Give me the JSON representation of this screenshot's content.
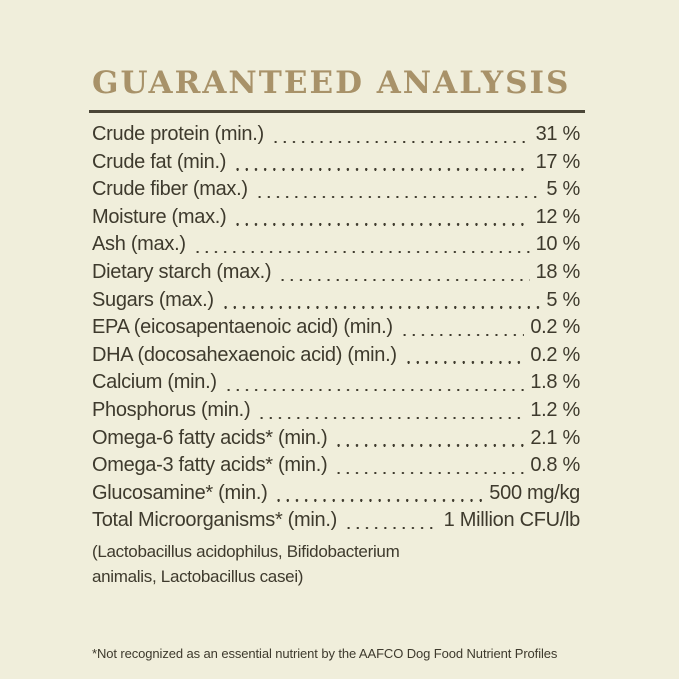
{
  "title": "GUARANTEED ANALYSIS",
  "nutrients": [
    {
      "label": "Crude protein (min.)",
      "value": "31 %"
    },
    {
      "label": "Crude fat (min.)",
      "value": "17 %"
    },
    {
      "label": "Crude fiber (max.)",
      "value": "5 %"
    },
    {
      "label": "Moisture (max.)",
      "value": "12 %"
    },
    {
      "label": "Ash (max.)",
      "value": "10 %"
    },
    {
      "label": "Dietary starch (max.)",
      "value": "18 %"
    },
    {
      "label": "Sugars (max.)",
      "value": "5 %"
    },
    {
      "label": "EPA (eicosapentaenoic acid) (min.)",
      "value": "0.2 %"
    },
    {
      "label": "DHA (docosahexaenoic acid) (min.)",
      "value": "0.2 %"
    },
    {
      "label": "Calcium (min.)",
      "value": "1.8 %"
    },
    {
      "label": "Phosphorus (min.)",
      "value": "1.2 %"
    },
    {
      "label": "Omega-6 fatty acids* (min.)",
      "value": "2.1 %"
    },
    {
      "label": "Omega-3 fatty acids* (min.)",
      "value": "0.8 %"
    },
    {
      "label": "Glucosamine* (min.)",
      "value": "500 mg/kg"
    },
    {
      "label": "Total Microorganisms* (min.)",
      "value": "1 Million CFU/lb"
    }
  ],
  "microorganism_note": "(Lactobacillus acidophilus, Bifidobacterium\nanimalis, Lactobacillus casei)",
  "footnote": "*Not recognized as an essential nutrient by the AAFCO Dog Food Nutrient Profiles",
  "colors": {
    "background": "#f0eedb",
    "title": "#a89269",
    "text": "#3e3a2d",
    "rule": "#4b4637"
  }
}
